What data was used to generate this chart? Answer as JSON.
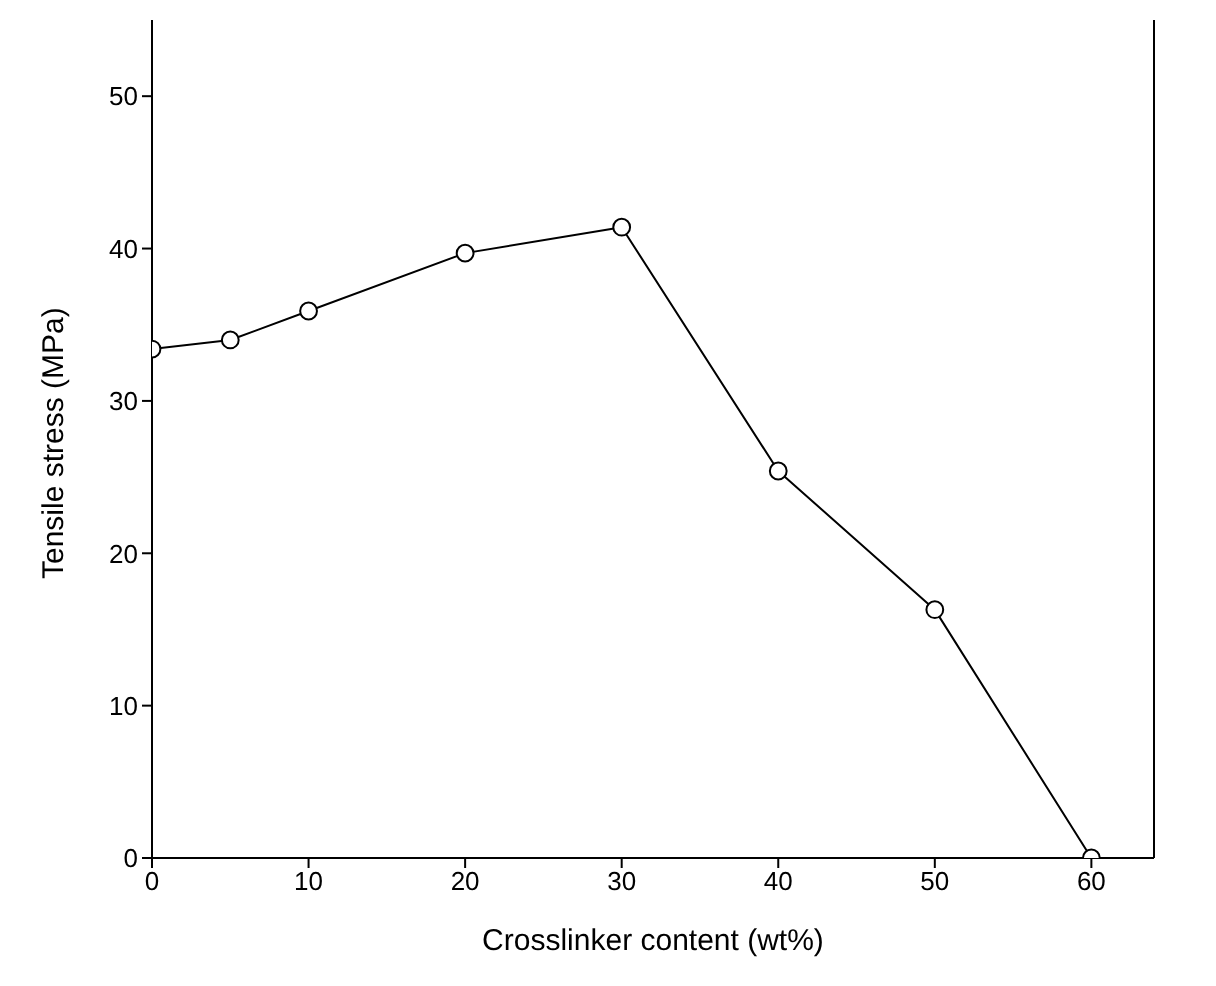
{
  "chart_data": {
    "type": "line",
    "xlabel": "Crosslinker content (wt%)",
    "ylabel": "Tensile stress (MPa)",
    "x": [
      0,
      5,
      10,
      20,
      30,
      40,
      50,
      60
    ],
    "series": [
      {
        "color": "#000000",
        "values": [
          33.4,
          34.0,
          35.9,
          39.7,
          41.4,
          25.4,
          16.3,
          0
        ]
      }
    ],
    "xlim": [
      0,
      64
    ],
    "xticks": [
      0,
      10,
      20,
      30,
      40,
      50,
      60
    ],
    "ylim": [
      0,
      55
    ],
    "yticks": [
      0,
      10,
      20,
      30,
      40,
      50
    ],
    "grid": false,
    "legend": false,
    "marker": "circle",
    "line_style": "solid"
  }
}
